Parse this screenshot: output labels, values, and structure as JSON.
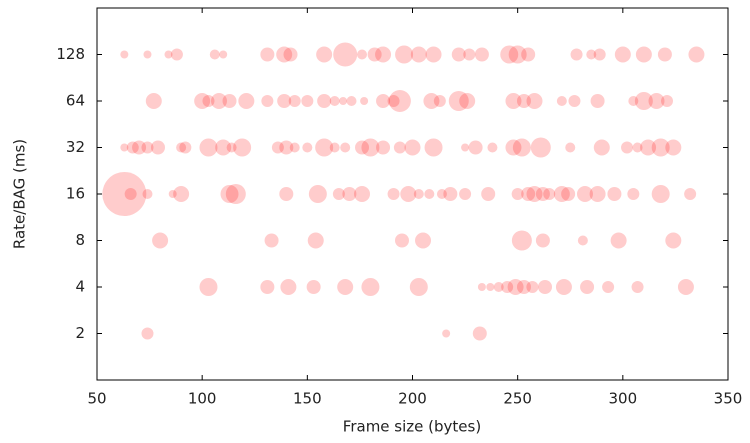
{
  "chart_data": {
    "type": "bubble",
    "x_label": "Frame size (bytes)",
    "y_label": "Rate/BAG (ms)",
    "xlim": [
      50,
      350
    ],
    "xticks": [
      50,
      100,
      150,
      200,
      250,
      300,
      350
    ],
    "ylim": [
      1,
      256
    ],
    "yticks": [
      2,
      4,
      8,
      16,
      32,
      64,
      128
    ],
    "y_log_base": 2,
    "color": "#ff0000",
    "opacity": 0.2,
    "series": [
      {
        "x": [
          63,
          74,
          84,
          88,
          106,
          110,
          131,
          139,
          142,
          158,
          168,
          176,
          182,
          186,
          196,
          203,
          210,
          222,
          227,
          233,
          246,
          250,
          255,
          278,
          285,
          289,
          300,
          310,
          320,
          335
        ],
        "values": [
          128,
          128,
          128,
          128,
          128,
          128,
          128,
          128,
          128,
          128,
          128,
          128,
          128,
          128,
          128,
          128,
          128,
          128,
          128,
          128,
          128,
          128,
          128,
          128,
          128,
          128,
          128,
          128,
          128,
          128
        ],
        "sizes": [
          4,
          4,
          4,
          6,
          5,
          4,
          7,
          8,
          7,
          8,
          12,
          5,
          7,
          8,
          9,
          8,
          8,
          7,
          6,
          7,
          9,
          9,
          7,
          6,
          5,
          6,
          8,
          8,
          7,
          8
        ]
      },
      {
        "x": [
          77,
          100,
          103,
          108,
          113,
          121,
          131,
          139,
          144,
          150,
          158,
          163,
          167,
          171,
          177,
          186,
          191,
          194,
          209,
          213,
          222,
          226,
          248,
          253,
          258,
          271,
          277,
          288,
          305,
          310,
          316,
          321
        ],
        "values": [
          64,
          64,
          64,
          64,
          64,
          64,
          64,
          64,
          64,
          64,
          64,
          64,
          64,
          64,
          64,
          64,
          64,
          64,
          64,
          64,
          64,
          64,
          64,
          64,
          64,
          64,
          64,
          64,
          64,
          64,
          64,
          64
        ],
        "sizes": [
          8,
          8,
          6,
          8,
          7,
          8,
          6,
          7,
          6,
          6,
          7,
          5,
          4,
          5,
          4,
          7,
          6,
          11,
          8,
          6,
          10,
          8,
          8,
          7,
          8,
          5,
          6,
          7,
          5,
          9,
          8,
          6
        ]
      },
      {
        "x": [
          63,
          67,
          70,
          74,
          79,
          90,
          92,
          103,
          110,
          114,
          119,
          136,
          140,
          144,
          150,
          158,
          163,
          168,
          176,
          180,
          186,
          194,
          200,
          210,
          225,
          230,
          238,
          248,
          252,
          261,
          275,
          290,
          302,
          307,
          312,
          318,
          324
        ],
        "values": [
          32,
          32,
          32,
          32,
          32,
          32,
          32,
          32,
          32,
          32,
          32,
          32,
          32,
          32,
          32,
          32,
          32,
          32,
          32,
          32,
          32,
          32,
          32,
          32,
          32,
          32,
          32,
          32,
          32,
          32,
          32,
          32,
          32,
          32,
          32,
          32,
          32
        ],
        "sizes": [
          4,
          6,
          7,
          6,
          7,
          5,
          6,
          9,
          8,
          5,
          9,
          6,
          7,
          5,
          5,
          9,
          5,
          5,
          7,
          9,
          7,
          6,
          8,
          9,
          4,
          7,
          5,
          8,
          9,
          10,
          5,
          8,
          6,
          5,
          8,
          9,
          8
        ]
      },
      {
        "x": [
          63,
          66,
          74,
          86,
          90,
          113,
          116,
          140,
          155,
          165,
          170,
          176,
          191,
          198,
          203,
          208,
          214,
          218,
          225,
          236,
          250,
          255,
          258,
          262,
          265,
          271,
          274,
          282,
          288,
          296,
          305,
          318,
          332
        ],
        "values": [
          16,
          16,
          16,
          16,
          16,
          16,
          16,
          16,
          16,
          16,
          16,
          16,
          16,
          16,
          16,
          16,
          16,
          16,
          16,
          16,
          16,
          16,
          16,
          16,
          16,
          16,
          16,
          16,
          16,
          16,
          16,
          16,
          16
        ],
        "sizes": [
          22,
          6,
          5,
          4,
          8,
          9,
          10,
          7,
          9,
          6,
          7,
          8,
          6,
          8,
          5,
          5,
          5,
          7,
          6,
          7,
          6,
          7,
          8,
          7,
          6,
          8,
          7,
          8,
          8,
          7,
          6,
          9,
          6
        ]
      },
      {
        "x": [
          80,
          133,
          154,
          195,
          205,
          252,
          262,
          281,
          298,
          324
        ],
        "values": [
          8,
          8,
          8,
          8,
          8,
          8,
          8,
          8,
          8,
          8
        ],
        "sizes": [
          8,
          7,
          8,
          7,
          8,
          10,
          7,
          5,
          8,
          8
        ]
      },
      {
        "x": [
          103,
          131,
          141,
          153,
          168,
          180,
          203,
          233,
          237,
          241,
          245,
          249,
          253,
          257,
          263,
          272,
          283,
          293,
          307,
          330
        ],
        "values": [
          4,
          4,
          4,
          4,
          4,
          4,
          4,
          4,
          4,
          4,
          4,
          4,
          4,
          4,
          4,
          4,
          4,
          4,
          4,
          4
        ],
        "sizes": [
          9,
          7,
          8,
          7,
          8,
          9,
          9,
          4,
          4,
          5,
          6,
          8,
          7,
          6,
          7,
          8,
          7,
          6,
          6,
          8
        ]
      },
      {
        "x": [
          74,
          216,
          232
        ],
        "values": [
          2,
          2,
          2
        ],
        "sizes": [
          6,
          4,
          7
        ]
      }
    ]
  }
}
